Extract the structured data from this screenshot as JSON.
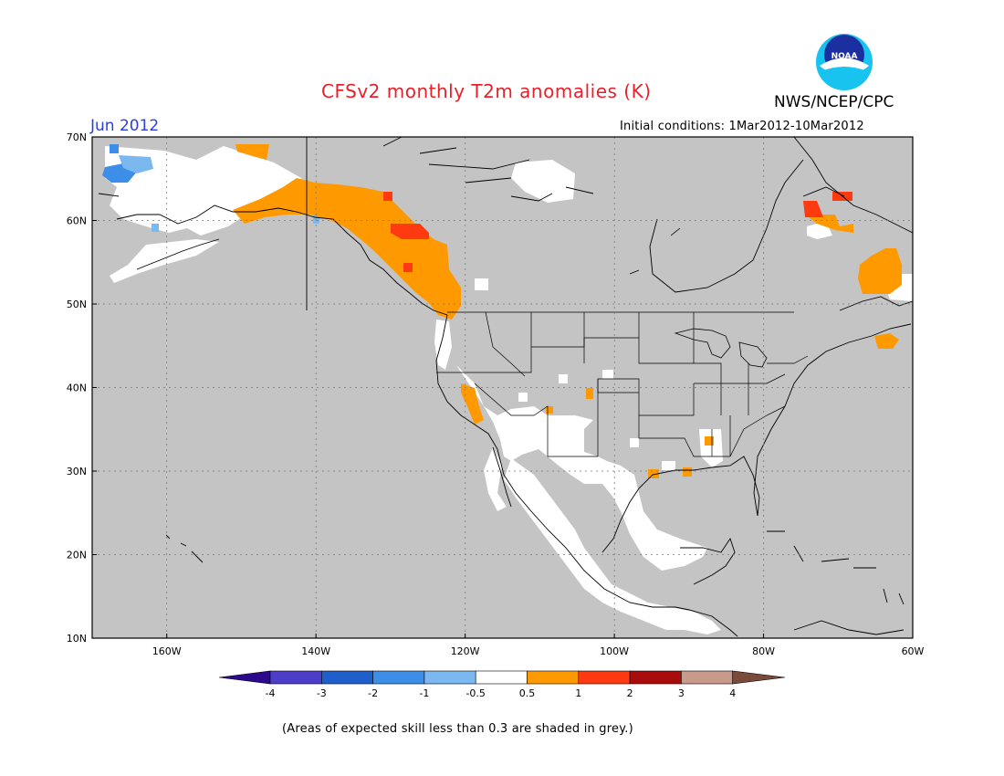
{
  "header": {
    "title": "CFSv2 monthly T2m anomalies (K)",
    "month": "Jun 2012",
    "organization": "NWS/NCEP/CPC",
    "logo_text": "NOAA",
    "initial_conditions": "Initial conditions: 1Mar2012-10Mar2012"
  },
  "map": {
    "lat_labels": [
      "70N",
      "60N",
      "50N",
      "40N",
      "30N",
      "20N",
      "10N"
    ],
    "lon_labels": [
      "160W",
      "140W",
      "120W",
      "100W",
      "80W",
      "60W"
    ],
    "extent": {
      "lon_min": -170,
      "lon_max": -60,
      "lat_min": 10,
      "lat_max": 70
    }
  },
  "colorbar": {
    "labels": [
      "-4",
      "-3",
      "-2",
      "-1",
      "-0.5",
      "0.5",
      "1",
      "2",
      "3",
      "4"
    ],
    "colors": [
      "#2b0a8c",
      "#4d3ec9",
      "#1f5fcc",
      "#3d8ee8",
      "#7bb8f0",
      "#ffffff",
      "#ff9900",
      "#ff3a10",
      "#a80c0c",
      "#c89a8c",
      "#7a4a3a"
    ]
  },
  "colors": {
    "grey_shading": "#c4c4c4",
    "title_red": "#e8202a",
    "month_blue": "#2c3ee0"
  },
  "footnote": "(Areas of expected skill less than 0.3 are shaded in grey.)"
}
